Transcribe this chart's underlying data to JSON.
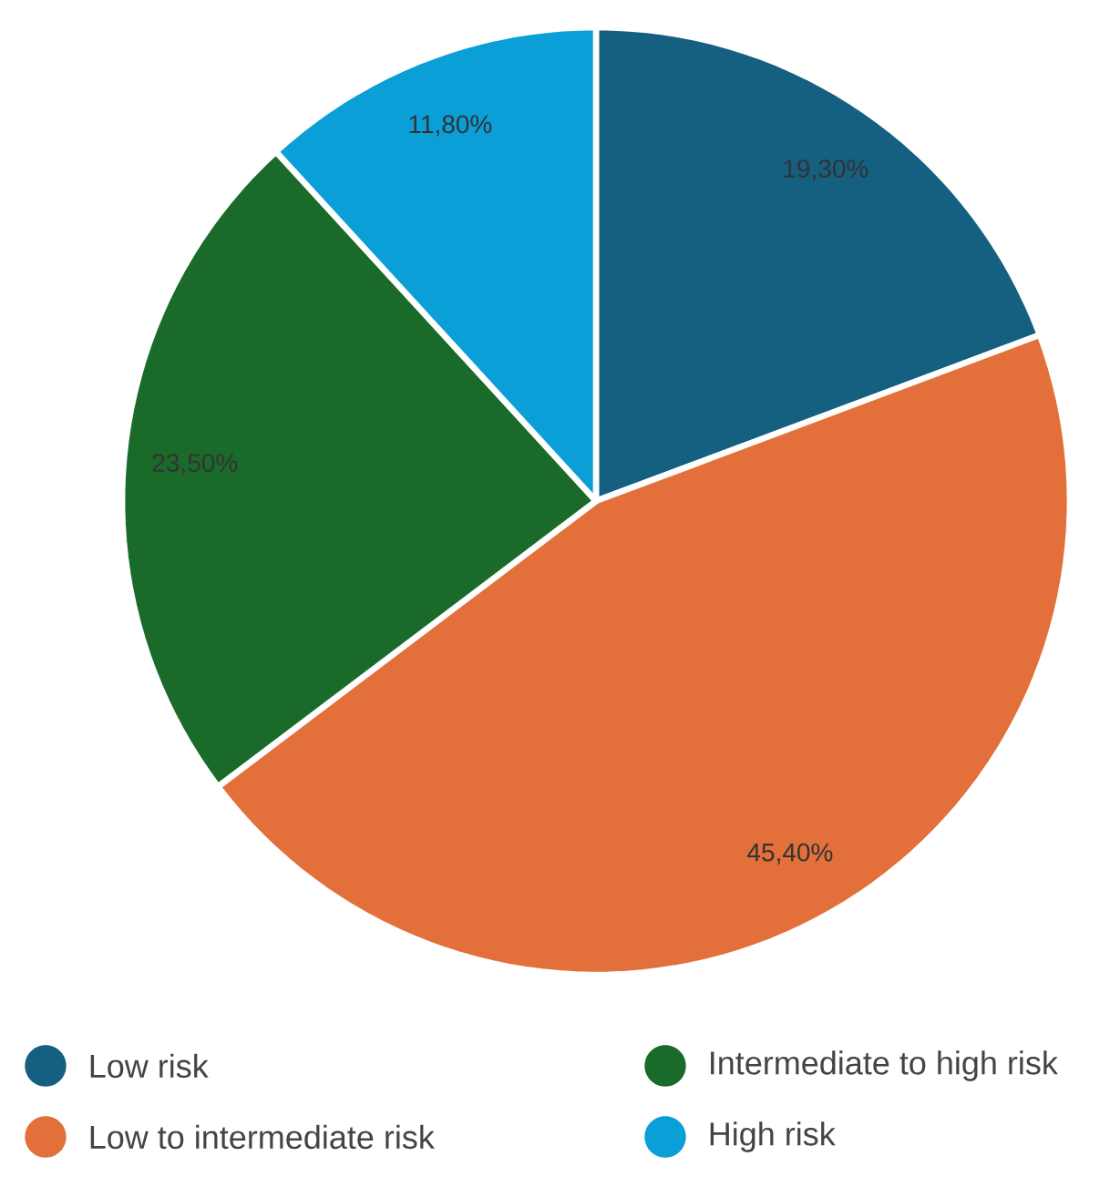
{
  "chart_data": {
    "type": "pie",
    "categories": [
      "Low risk",
      "Low to intermediate risk",
      "Intermediate to high risk",
      "High risk"
    ],
    "values": [
      19.3,
      45.4,
      23.5,
      11.8
    ],
    "value_labels": [
      "19,30%",
      "45,40%",
      "23,50%",
      "11,80%"
    ],
    "colors": [
      "#155f80",
      "#e3703a",
      "#1a6b2a",
      "#0a9fd6"
    ],
    "legend": "bottom"
  }
}
